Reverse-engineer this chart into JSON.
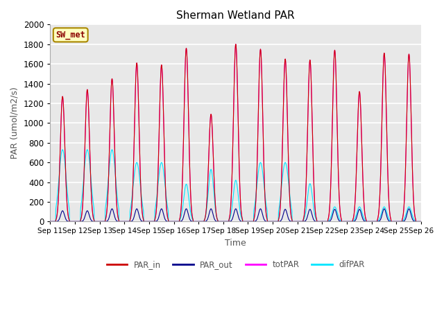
{
  "title": "Sherman Wetland PAR",
  "ylabel": "PAR (umol/m2/s)",
  "xlabel": "Time",
  "ylim": [
    0,
    2000
  ],
  "yticks": [
    0,
    200,
    400,
    600,
    800,
    1000,
    1200,
    1400,
    1600,
    1800,
    2000
  ],
  "figure_bg": "#ffffff",
  "plot_bg": "#e8e8e8",
  "grid_color": "#ffffff",
  "colors": {
    "PAR_in": "#cc0000",
    "PAR_out": "#00008b",
    "totPAR": "#ff00ff",
    "difPAR": "#00e5ff"
  },
  "legend_label_box": "SW_met",
  "n_days": 15,
  "xtick_labels": [
    "Sep 11",
    "Sep 12",
    "Sep 13",
    "Sep 14",
    "Sep 15",
    "Sep 16",
    "Sep 17",
    "Sep 18",
    "Sep 19",
    "Sep 20",
    "Sep 21",
    "Sep 22",
    "Sep 23",
    "Sep 24",
    "Sep 25",
    "Sep 26"
  ],
  "par_in_peaks": [
    1270,
    1340,
    1450,
    1610,
    1590,
    1760,
    1090,
    1800,
    1750,
    1650,
    1640,
    1740,
    1320,
    1710,
    1700
  ],
  "par_out_peaks": [
    110,
    110,
    130,
    130,
    130,
    130,
    130,
    130,
    130,
    125,
    125,
    125,
    125,
    130,
    130
  ],
  "tot_peaks": [
    1270,
    1340,
    1450,
    1610,
    1590,
    1760,
    1090,
    1800,
    1750,
    1650,
    1640,
    1740,
    1320,
    1710,
    1700
  ],
  "dif_peaks": [
    730,
    730,
    730,
    600,
    600,
    380,
    530,
    420,
    600,
    600,
    385,
    150,
    150,
    150,
    150
  ],
  "widths_in": [
    2.2,
    2.2,
    2.2,
    2.2,
    2.2,
    2.2,
    2.2,
    2.2,
    2.2,
    2.2,
    2.2,
    2.2,
    2.2,
    2.2,
    2.2
  ],
  "widths_dif": [
    3.5,
    3.5,
    3.5,
    3.5,
    3.5,
    2.5,
    2.5,
    2.5,
    3.5,
    3.5,
    2.5,
    2.5,
    2.5,
    2.5,
    2.5
  ]
}
